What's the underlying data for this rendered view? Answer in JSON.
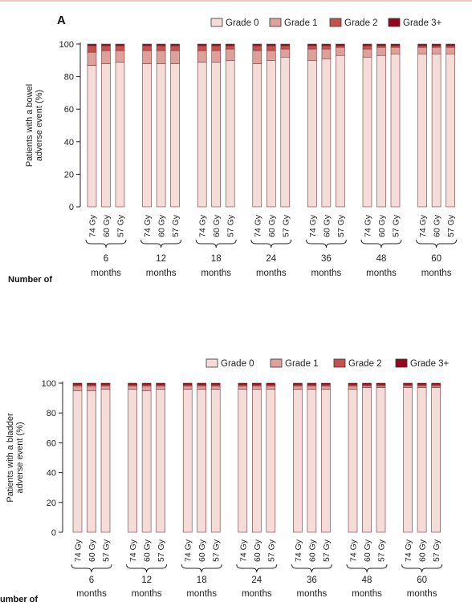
{
  "colors": {
    "grade0": "#f5dcd8",
    "grade1": "#dea09a",
    "grade2": "#c1524d",
    "grade3": "#950620",
    "edge": "#6a3a3a"
  },
  "legend": [
    "Grade 0",
    "Grade 1",
    "Grade 2",
    "Grade 3+"
  ],
  "cut_text": [
    "Number of",
    "umber of"
  ],
  "chart_data": [
    {
      "type": "bar",
      "stacked": true,
      "panel": "A",
      "ylabel_lines": [
        "Patients with a bowel",
        "adverse event (%)"
      ],
      "ylim": [
        0,
        100
      ],
      "yticks": [
        "0",
        "20",
        "40",
        "60",
        "80",
        "100"
      ],
      "legend_position": "top-right",
      "doses": [
        "74 Gy",
        "60 Gy",
        "57 Gy"
      ],
      "timepoints": [
        {
          "value": "6",
          "unit": "months"
        },
        {
          "value": "12",
          "unit": "months"
        },
        {
          "value": "18",
          "unit": "months"
        },
        {
          "value": "24",
          "unit": "months"
        },
        {
          "value": "36",
          "unit": "months"
        },
        {
          "value": "48",
          "unit": "months"
        },
        {
          "value": "60",
          "unit": "months"
        }
      ],
      "series": [
        {
          "name": "Grade 0",
          "values": [
            87,
            88,
            89,
            88,
            88,
            88,
            89,
            89,
            90,
            88,
            90,
            92,
            90,
            91,
            93,
            92,
            93,
            94,
            94,
            94,
            94
          ]
        },
        {
          "name": "Grade 1",
          "values": [
            8,
            8,
            7,
            8,
            8,
            8,
            7,
            7,
            7,
            8,
            6,
            5,
            7,
            6,
            5,
            5,
            5,
            4,
            4,
            4,
            4
          ]
        },
        {
          "name": "Grade 2",
          "values": [
            4,
            3,
            3,
            3,
            3,
            3,
            3,
            3,
            2,
            3,
            3,
            2,
            2,
            2,
            1,
            2,
            1,
            1,
            1,
            1,
            1
          ]
        },
        {
          "name": "Grade 3+",
          "values": [
            1,
            1,
            1,
            1,
            1,
            1,
            1,
            1,
            1,
            1,
            1,
            1,
            1,
            1,
            1,
            1,
            1,
            1,
            1,
            1,
            1
          ]
        }
      ]
    },
    {
      "type": "bar",
      "stacked": true,
      "panel": "",
      "ylabel_lines": [
        "Patients with a bladder",
        "adverse event (%)"
      ],
      "ylim": [
        0,
        100
      ],
      "yticks": [
        "0",
        "20",
        "40",
        "60",
        "80",
        "100"
      ],
      "legend_position": "top-right",
      "doses": [
        "74 Gy",
        "60 Gy",
        "57 Gy"
      ],
      "timepoints": [
        {
          "value": "6",
          "unit": "months"
        },
        {
          "value": "12",
          "unit": "months"
        },
        {
          "value": "18",
          "unit": "months"
        },
        {
          "value": "24",
          "unit": "months"
        },
        {
          "value": "36",
          "unit": "months"
        },
        {
          "value": "48",
          "unit": "months"
        },
        {
          "value": "60",
          "unit": "months"
        }
      ],
      "series": [
        {
          "name": "Grade 0",
          "values": [
            95,
            95,
            96,
            96,
            95,
            96,
            96,
            96,
            96,
            96,
            96,
            96,
            96,
            96,
            96,
            96,
            97,
            97,
            97,
            97,
            97
          ]
        },
        {
          "name": "Grade 1",
          "values": [
            3,
            3,
            2,
            2,
            3,
            2,
            2,
            2,
            2,
            2,
            2,
            2,
            2,
            2,
            2,
            2,
            1,
            1,
            1,
            1,
            1
          ]
        },
        {
          "name": "Grade 2",
          "values": [
            1,
            1,
            1,
            1,
            1,
            1,
            1,
            1,
            1,
            1,
            1,
            1,
            1,
            1,
            1,
            1,
            1,
            1,
            1,
            1,
            1
          ]
        },
        {
          "name": "Grade 3+",
          "values": [
            1,
            1,
            1,
            1,
            1,
            1,
            1,
            1,
            1,
            1,
            1,
            1,
            1,
            1,
            1,
            1,
            1,
            1,
            1,
            1,
            1
          ]
        }
      ]
    }
  ]
}
